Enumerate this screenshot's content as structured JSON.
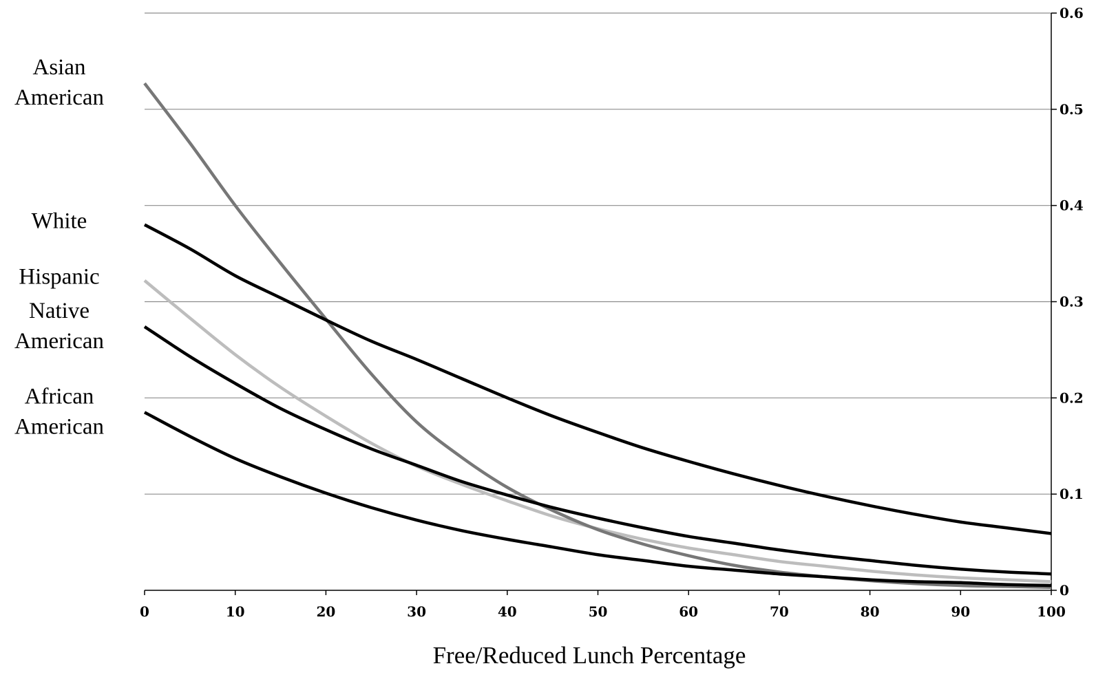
{
  "chart_data": {
    "type": "line",
    "title": "",
    "xlabel": "Free/Reduced Lunch Percentage",
    "ylabel": "",
    "xlim": [
      0,
      100
    ],
    "ylim": [
      0,
      0.6
    ],
    "x_ticks": [
      0,
      10,
      20,
      30,
      40,
      50,
      60,
      70,
      80,
      90,
      100
    ],
    "y_ticks": [
      {
        "value": 0,
        "label": "0"
      },
      {
        "value": 0.1,
        "label": "0.1"
      },
      {
        "value": 0.2,
        "label": "0.2"
      },
      {
        "value": 0.3,
        "label": "0.3"
      },
      {
        "value": 0.4,
        "label": "0.4"
      },
      {
        "value": 0.5,
        "label": "0.5"
      },
      {
        "value": 0.6,
        "label": "0.6"
      }
    ],
    "y_axis_side": "right",
    "grid": "horizontal",
    "legend": "left-side labels",
    "series": [
      {
        "name": "Asian American",
        "label_lines": [
          "Asian",
          "American"
        ],
        "color": "#777777",
        "x": [
          0,
          5,
          10,
          15,
          20,
          25,
          30,
          35,
          40,
          45,
          50,
          55,
          60,
          65,
          70,
          75,
          80,
          85,
          90,
          95,
          100
        ],
        "values": [
          0.527,
          0.465,
          0.4,
          0.34,
          0.282,
          0.225,
          0.175,
          0.138,
          0.107,
          0.083,
          0.063,
          0.048,
          0.036,
          0.026,
          0.019,
          0.014,
          0.01,
          0.007,
          0.005,
          0.004,
          0.003
        ]
      },
      {
        "name": "White",
        "label_lines": [
          "White"
        ],
        "color": "#000000",
        "x": [
          0,
          5,
          10,
          15,
          20,
          25,
          30,
          35,
          40,
          45,
          50,
          55,
          60,
          65,
          70,
          75,
          80,
          85,
          90,
          95,
          100
        ],
        "values": [
          0.38,
          0.355,
          0.327,
          0.304,
          0.281,
          0.259,
          0.24,
          0.22,
          0.2,
          0.181,
          0.164,
          0.148,
          0.134,
          0.121,
          0.109,
          0.098,
          0.088,
          0.079,
          0.071,
          0.065,
          0.059
        ]
      },
      {
        "name": "Hispanic",
        "label_lines": [
          "Hispanic"
        ],
        "color": "#bdbdbd",
        "x": [
          0,
          5,
          10,
          15,
          20,
          25,
          30,
          35,
          40,
          45,
          50,
          55,
          60,
          65,
          70,
          75,
          80,
          85,
          90,
          95,
          100
        ],
        "values": [
          0.322,
          0.283,
          0.245,
          0.211,
          0.181,
          0.153,
          0.129,
          0.11,
          0.093,
          0.077,
          0.064,
          0.053,
          0.044,
          0.037,
          0.03,
          0.025,
          0.02,
          0.016,
          0.013,
          0.011,
          0.009
        ]
      },
      {
        "name": "Native American",
        "label_lines": [
          "Native",
          "American"
        ],
        "color": "#000000",
        "x": [
          0,
          5,
          10,
          15,
          20,
          25,
          30,
          35,
          40,
          45,
          50,
          55,
          60,
          65,
          70,
          75,
          80,
          85,
          90,
          95,
          100
        ],
        "values": [
          0.274,
          0.243,
          0.215,
          0.189,
          0.167,
          0.147,
          0.13,
          0.113,
          0.099,
          0.086,
          0.075,
          0.065,
          0.056,
          0.049,
          0.042,
          0.036,
          0.031,
          0.026,
          0.022,
          0.019,
          0.017
        ]
      },
      {
        "name": "African American",
        "label_lines": [
          "African",
          "American"
        ],
        "color": "#000000",
        "x": [
          0,
          5,
          10,
          15,
          20,
          25,
          30,
          35,
          40,
          45,
          50,
          55,
          60,
          65,
          70,
          75,
          80,
          85,
          90,
          95,
          100
        ],
        "values": [
          0.185,
          0.16,
          0.137,
          0.118,
          0.101,
          0.086,
          0.073,
          0.062,
          0.053,
          0.045,
          0.037,
          0.031,
          0.025,
          0.021,
          0.017,
          0.014,
          0.011,
          0.009,
          0.008,
          0.006,
          0.005
        ]
      }
    ]
  }
}
